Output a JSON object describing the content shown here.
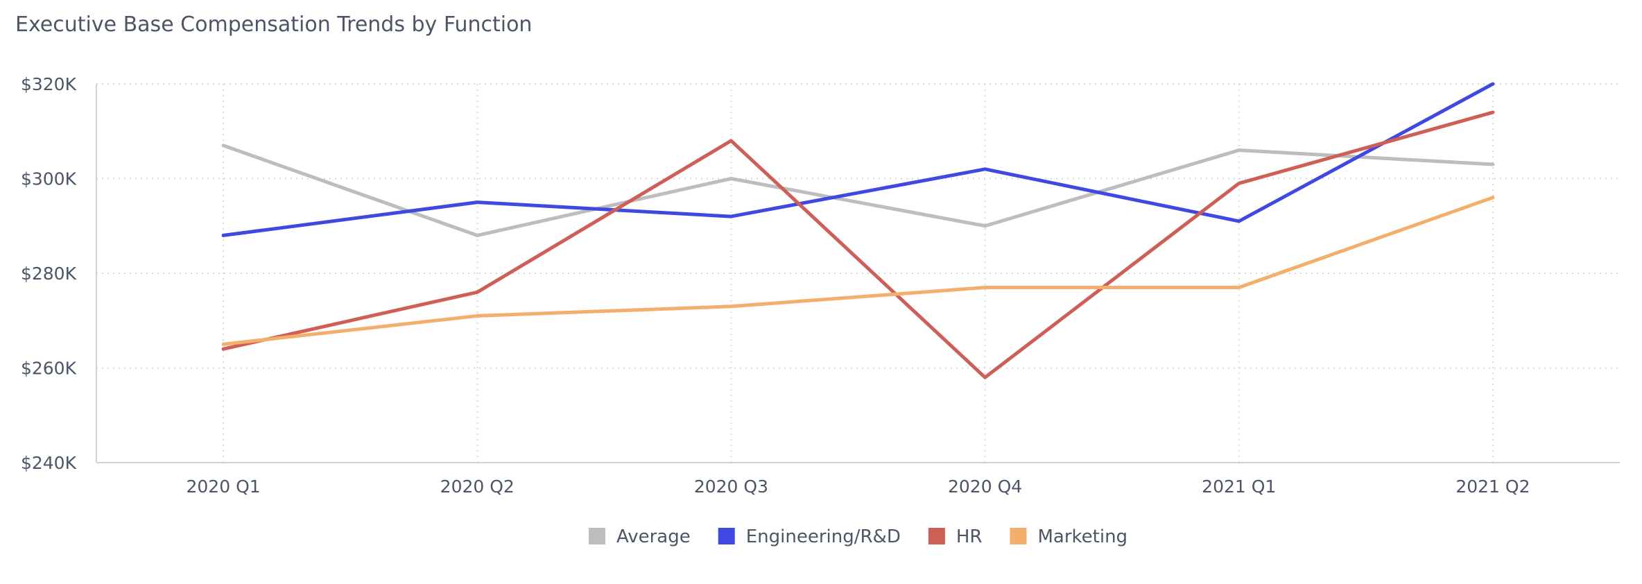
{
  "chart_data": {
    "type": "line",
    "title": "Executive Base Compensation Trends by Function",
    "xlabel": "",
    "ylabel": "",
    "categories": [
      "2020 Q1",
      "2020 Q2",
      "2020 Q3",
      "2020 Q4",
      "2021 Q1",
      "2021 Q2"
    ],
    "ylim": [
      240000,
      320000
    ],
    "yticks": [
      240000,
      260000,
      280000,
      300000,
      320000
    ],
    "ytick_labels": [
      "$240K",
      "$260K",
      "$280K",
      "$300K",
      "$320K"
    ],
    "grid": true,
    "legend_position": "bottom-center",
    "series": [
      {
        "name": "Average",
        "color": "#bdbdbd",
        "values": [
          307000,
          288000,
          300000,
          290000,
          306000,
          303000
        ]
      },
      {
        "name": "Engineering/R&D",
        "color": "#3f48e0",
        "values": [
          288000,
          295000,
          292000,
          302000,
          291000,
          320000
        ]
      },
      {
        "name": "HR",
        "color": "#cd5f57",
        "values": [
          264000,
          276000,
          308000,
          258000,
          299000,
          314000
        ]
      },
      {
        "name": "Marketing",
        "color": "#f3ae6b",
        "values": [
          265000,
          271000,
          273000,
          277000,
          277000,
          296000
        ]
      }
    ]
  }
}
